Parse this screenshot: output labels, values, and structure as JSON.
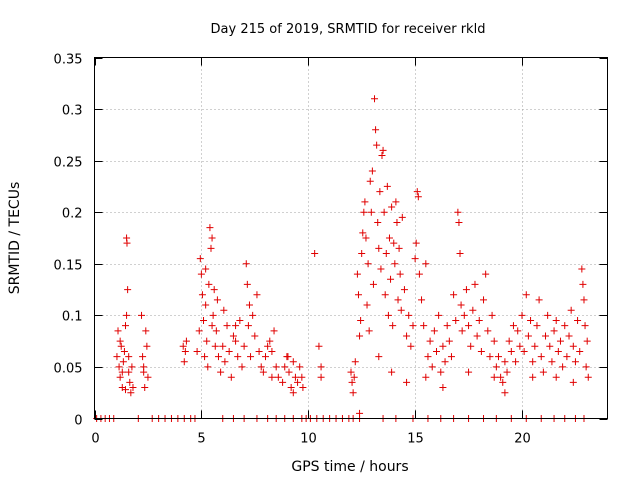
{
  "chart_data": {
    "type": "scatter",
    "title": "Day 215 of 2019, SRMTID for receiver rkld",
    "xlabel": "GPS time / hours",
    "ylabel": "SRMTID / TECUs",
    "xlim": [
      0,
      24
    ],
    "ylim": [
      0,
      0.35
    ],
    "xticks": [
      0,
      5,
      10,
      15,
      20
    ],
    "xtick_labels": [
      "0",
      "5",
      "10",
      "15",
      "20"
    ],
    "yticks": [
      0,
      0.05,
      0.1,
      0.15,
      0.2,
      0.25,
      0.3,
      0.35
    ],
    "ytick_labels": [
      "0",
      "0.05",
      "0.1",
      "0.15",
      "0.2",
      "0.25",
      "0.3",
      "0.35"
    ],
    "grid": true,
    "marker": "+",
    "marker_color": "#e00000",
    "series": [
      {
        "name": "SRMTID",
        "points": [
          [
            0.1,
            0
          ],
          [
            0.3,
            0
          ],
          [
            0.5,
            0
          ],
          [
            0.7,
            0
          ],
          [
            0.9,
            0
          ],
          [
            1.05,
            0.06
          ],
          [
            1.1,
            0.085
          ],
          [
            1.15,
            0.05
          ],
          [
            1.2,
            0.04
          ],
          [
            1.25,
            0.07
          ],
          [
            1.3,
            0.03
          ],
          [
            1.35,
            0.055
          ],
          [
            1.4,
            0.065
          ],
          [
            1.45,
            0.028
          ],
          [
            1.5,
            0.1
          ],
          [
            1.5,
            0.175
          ],
          [
            1.52,
            0.17
          ],
          [
            1.55,
            0.125
          ],
          [
            1.6,
            0.045
          ],
          [
            1.65,
            0.035
          ],
          [
            1.7,
            0.025
          ],
          [
            1.75,
            0.05
          ],
          [
            1.8,
            0.03
          ],
          [
            1.2,
            0.075
          ],
          [
            1.3,
            0.045
          ],
          [
            1.45,
            0.09
          ],
          [
            1.6,
            0.06
          ],
          [
            2.05,
            0
          ],
          [
            2.2,
            0.1
          ],
          [
            2.25,
            0.06
          ],
          [
            2.3,
            0.045
          ],
          [
            2.35,
            0.03
          ],
          [
            2.4,
            0.085
          ],
          [
            2.45,
            0.07
          ],
          [
            2.5,
            0.04
          ],
          [
            2.3,
            0.05
          ],
          [
            2.7,
            0
          ],
          [
            3.0,
            0
          ],
          [
            3.3,
            0
          ],
          [
            3.6,
            0
          ],
          [
            3.9,
            0
          ],
          [
            4.2,
            0
          ],
          [
            4.5,
            0
          ],
          [
            4.7,
            0
          ],
          [
            4.15,
            0.07
          ],
          [
            4.2,
            0.055
          ],
          [
            4.25,
            0.065
          ],
          [
            4.3,
            0.075
          ],
          [
            4.8,
            0.065
          ],
          [
            4.9,
            0.085
          ],
          [
            4.95,
            0.155
          ],
          [
            5.0,
            0.14
          ],
          [
            5.05,
            0.12
          ],
          [
            5.1,
            0.095
          ],
          [
            5.15,
            0.06
          ],
          [
            5.2,
            0.11
          ],
          [
            5.25,
            0.075
          ],
          [
            5.3,
            0.05
          ],
          [
            5.35,
            0.13
          ],
          [
            5.4,
            0.185
          ],
          [
            5.45,
            0.165
          ],
          [
            5.5,
            0.09
          ],
          [
            5.55,
            0.1
          ],
          [
            5.6,
            0.125
          ],
          [
            5.65,
            0.07
          ],
          [
            5.7,
            0.085
          ],
          [
            5.75,
            0.115
          ],
          [
            5.8,
            0.06
          ],
          [
            5.9,
            0.045
          ],
          [
            6.0,
            0.07
          ],
          [
            6.1,
            0.055
          ],
          [
            6.2,
            0.09
          ],
          [
            6.3,
            0.065
          ],
          [
            6.4,
            0.04
          ],
          [
            6.5,
            0.08
          ],
          [
            6.6,
            0.075
          ],
          [
            6.7,
            0.06
          ],
          [
            6.8,
            0.095
          ],
          [
            6.9,
            0.05
          ],
          [
            7.0,
            0.07
          ],
          [
            7.1,
            0.15
          ],
          [
            7.15,
            0.13
          ],
          [
            7.2,
            0.09
          ],
          [
            7.3,
            0.06
          ],
          [
            7.4,
            0.1
          ],
          [
            7.5,
            0.08
          ],
          [
            7.6,
            0.12
          ],
          [
            7.7,
            0.065
          ],
          [
            7.8,
            0.05
          ],
          [
            7.9,
            0.045
          ],
          [
            8.0,
            0.06
          ],
          [
            8.1,
            0.07
          ],
          [
            8.2,
            0.075
          ],
          [
            8.3,
            0.065
          ],
          [
            8.4,
            0.085
          ],
          [
            8.5,
            0.05
          ],
          [
            8.6,
            0.04
          ],
          [
            8.8,
            0.035
          ],
          [
            8.9,
            0.05
          ],
          [
            9.0,
            0.06
          ],
          [
            9.1,
            0.045
          ],
          [
            9.2,
            0.03
          ],
          [
            9.3,
            0.055
          ],
          [
            9.4,
            0.04
          ],
          [
            9.5,
            0.035
          ],
          [
            9.6,
            0.05
          ],
          [
            9.7,
            0.04
          ],
          [
            9.75,
            0.03
          ],
          [
            5.2,
            0.145
          ],
          [
            5.5,
            0.175
          ],
          [
            6.05,
            0.105
          ],
          [
            6.6,
            0.09
          ],
          [
            7.25,
            0.11
          ],
          [
            8.3,
            0.04
          ],
          [
            9.05,
            0.06
          ],
          [
            9.3,
            0.025
          ],
          [
            6.0,
            0
          ],
          [
            6.5,
            0
          ],
          [
            7.0,
            0
          ],
          [
            7.6,
            0
          ],
          [
            8.1,
            0
          ],
          [
            8.5,
            0
          ],
          [
            8.9,
            0
          ],
          [
            9.3,
            0
          ],
          [
            9.7,
            0
          ],
          [
            9.9,
            0
          ],
          [
            10.1,
            0
          ],
          [
            10.3,
            0.16
          ],
          [
            10.5,
            0.07
          ],
          [
            10.6,
            0.05
          ],
          [
            10.6,
            0.04
          ],
          [
            10.4,
            0
          ],
          [
            10.7,
            0
          ],
          [
            11.0,
            0
          ],
          [
            11.3,
            0
          ],
          [
            11.6,
            0
          ],
          [
            11.9,
            0
          ],
          [
            12.0,
            0.045
          ],
          [
            12.05,
            0.035
          ],
          [
            12.1,
            0.025
          ],
          [
            12.15,
            0.04
          ],
          [
            12.2,
            0.055
          ],
          [
            12.3,
            0.14
          ],
          [
            12.35,
            0.12
          ],
          [
            12.4,
            0.08
          ],
          [
            12.45,
            0.095
          ],
          [
            12.5,
            0.16
          ],
          [
            12.55,
            0.18
          ],
          [
            12.6,
            0.2
          ],
          [
            12.65,
            0.21
          ],
          [
            12.7,
            0.175
          ],
          [
            12.75,
            0.11
          ],
          [
            12.8,
            0.15
          ],
          [
            12.85,
            0.085
          ],
          [
            12.9,
            0.23
          ],
          [
            12.95,
            0.2
          ],
          [
            13.0,
            0.24
          ],
          [
            13.05,
            0.13
          ],
          [
            13.1,
            0.31
          ],
          [
            13.15,
            0.28
          ],
          [
            13.2,
            0.265
          ],
          [
            13.25,
            0.19
          ],
          [
            13.3,
            0.165
          ],
          [
            13.35,
            0.22
          ],
          [
            13.4,
            0.145
          ],
          [
            13.45,
            0.255
          ],
          [
            13.5,
            0.26
          ],
          [
            13.55,
            0.2
          ],
          [
            13.6,
            0.12
          ],
          [
            13.65,
            0.16
          ],
          [
            13.7,
            0.225
          ],
          [
            13.75,
            0.1
          ],
          [
            13.8,
            0.175
          ],
          [
            13.85,
            0.135
          ],
          [
            13.9,
            0.205
          ],
          [
            13.95,
            0.09
          ],
          [
            14.0,
            0.17
          ],
          [
            14.05,
            0.15
          ],
          [
            14.1,
            0.21
          ],
          [
            14.15,
            0.19
          ],
          [
            14.2,
            0.115
          ],
          [
            14.25,
            0.165
          ],
          [
            14.3,
            0.14
          ],
          [
            14.35,
            0.105
          ],
          [
            14.4,
            0.195
          ],
          [
            14.5,
            0.125
          ],
          [
            14.6,
            0.08
          ],
          [
            14.7,
            0.1
          ],
          [
            14.8,
            0.07
          ],
          [
            14.9,
            0.09
          ],
          [
            15.0,
            0.155
          ],
          [
            15.05,
            0.17
          ],
          [
            15.1,
            0.22
          ],
          [
            15.15,
            0.215
          ],
          [
            15.2,
            0.14
          ],
          [
            15.3,
            0.115
          ],
          [
            15.4,
            0.09
          ],
          [
            15.5,
            0.15
          ],
          [
            15.6,
            0.06
          ],
          [
            15.7,
            0.075
          ],
          [
            15.8,
            0.05
          ],
          [
            15.9,
            0.085
          ],
          [
            16.0,
            0.065
          ],
          [
            16.1,
            0.1
          ],
          [
            16.2,
            0.045
          ],
          [
            16.3,
            0.07
          ],
          [
            16.4,
            0.055
          ],
          [
            16.5,
            0.09
          ],
          [
            16.6,
            0.075
          ],
          [
            16.7,
            0.06
          ],
          [
            16.8,
            0.12
          ],
          [
            16.9,
            0.095
          ],
          [
            17.0,
            0.2
          ],
          [
            17.05,
            0.19
          ],
          [
            17.1,
            0.16
          ],
          [
            17.15,
            0.11
          ],
          [
            17.2,
            0.085
          ],
          [
            17.3,
            0.1
          ],
          [
            17.4,
            0.125
          ],
          [
            17.5,
            0.09
          ],
          [
            17.6,
            0.07
          ],
          [
            17.7,
            0.105
          ],
          [
            17.8,
            0.13
          ],
          [
            17.9,
            0.08
          ],
          [
            18.0,
            0.095
          ],
          [
            18.1,
            0.065
          ],
          [
            18.2,
            0.115
          ],
          [
            18.3,
            0.14
          ],
          [
            18.4,
            0.085
          ],
          [
            18.5,
            0.06
          ],
          [
            18.6,
            0.1
          ],
          [
            18.7,
            0.075
          ],
          [
            18.8,
            0.05
          ],
          [
            18.9,
            0.06
          ],
          [
            19.0,
            0.04
          ],
          [
            19.1,
            0.035
          ],
          [
            19.2,
            0.055
          ],
          [
            19.3,
            0.045
          ],
          [
            19.4,
            0.075
          ],
          [
            19.5,
            0.065
          ],
          [
            19.6,
            0.09
          ],
          [
            19.7,
            0.055
          ],
          [
            19.8,
            0.085
          ],
          [
            19.9,
            0.07
          ],
          [
            20.0,
            0.1
          ],
          [
            20.1,
            0.065
          ],
          [
            20.2,
            0.12
          ],
          [
            20.3,
            0.08
          ],
          [
            20.4,
            0.095
          ],
          [
            20.5,
            0.055
          ],
          [
            20.6,
            0.07
          ],
          [
            20.7,
            0.09
          ],
          [
            20.8,
            0.115
          ],
          [
            20.9,
            0.06
          ],
          [
            21.0,
            0.045
          ],
          [
            21.1,
            0.08
          ],
          [
            21.2,
            0.1
          ],
          [
            21.3,
            0.07
          ],
          [
            21.4,
            0.055
          ],
          [
            21.5,
            0.085
          ],
          [
            21.6,
            0.095
          ],
          [
            21.7,
            0.065
          ],
          [
            21.8,
            0.075
          ],
          [
            21.9,
            0.05
          ],
          [
            22.0,
            0.09
          ],
          [
            22.1,
            0.06
          ],
          [
            22.2,
            0.08
          ],
          [
            22.3,
            0.105
          ],
          [
            22.4,
            0.07
          ],
          [
            22.5,
            0.055
          ],
          [
            22.6,
            0.095
          ],
          [
            22.7,
            0.065
          ],
          [
            22.8,
            0.145
          ],
          [
            22.85,
            0.13
          ],
          [
            22.9,
            0.115
          ],
          [
            22.95,
            0.09
          ],
          [
            23.0,
            0.05
          ],
          [
            23.05,
            0.075
          ],
          [
            23.1,
            0.04
          ],
          [
            12.4,
            0.005
          ],
          [
            13.3,
            0.06
          ],
          [
            13.9,
            0.045
          ],
          [
            14.6,
            0.035
          ],
          [
            15.5,
            0.04
          ],
          [
            16.3,
            0.03
          ],
          [
            17.5,
            0.045
          ],
          [
            18.7,
            0.04
          ],
          [
            19.2,
            0.025
          ],
          [
            20.5,
            0.04
          ],
          [
            21.6,
            0.04
          ],
          [
            22.4,
            0.035
          ],
          [
            12.1,
            0
          ],
          [
            12.4,
            0
          ],
          [
            13.5,
            0
          ],
          [
            14.1,
            0
          ],
          [
            14.9,
            0
          ],
          [
            15.6,
            0
          ],
          [
            16.2,
            0
          ],
          [
            16.8,
            0
          ],
          [
            17.5,
            0
          ],
          [
            18.2,
            0
          ],
          [
            18.8,
            0
          ],
          [
            19.5,
            0
          ],
          [
            20.2,
            0
          ],
          [
            20.9,
            0
          ],
          [
            21.5,
            0
          ],
          [
            22.0,
            0
          ],
          [
            22.5,
            0
          ],
          [
            22.9,
            0
          ]
        ]
      }
    ]
  }
}
